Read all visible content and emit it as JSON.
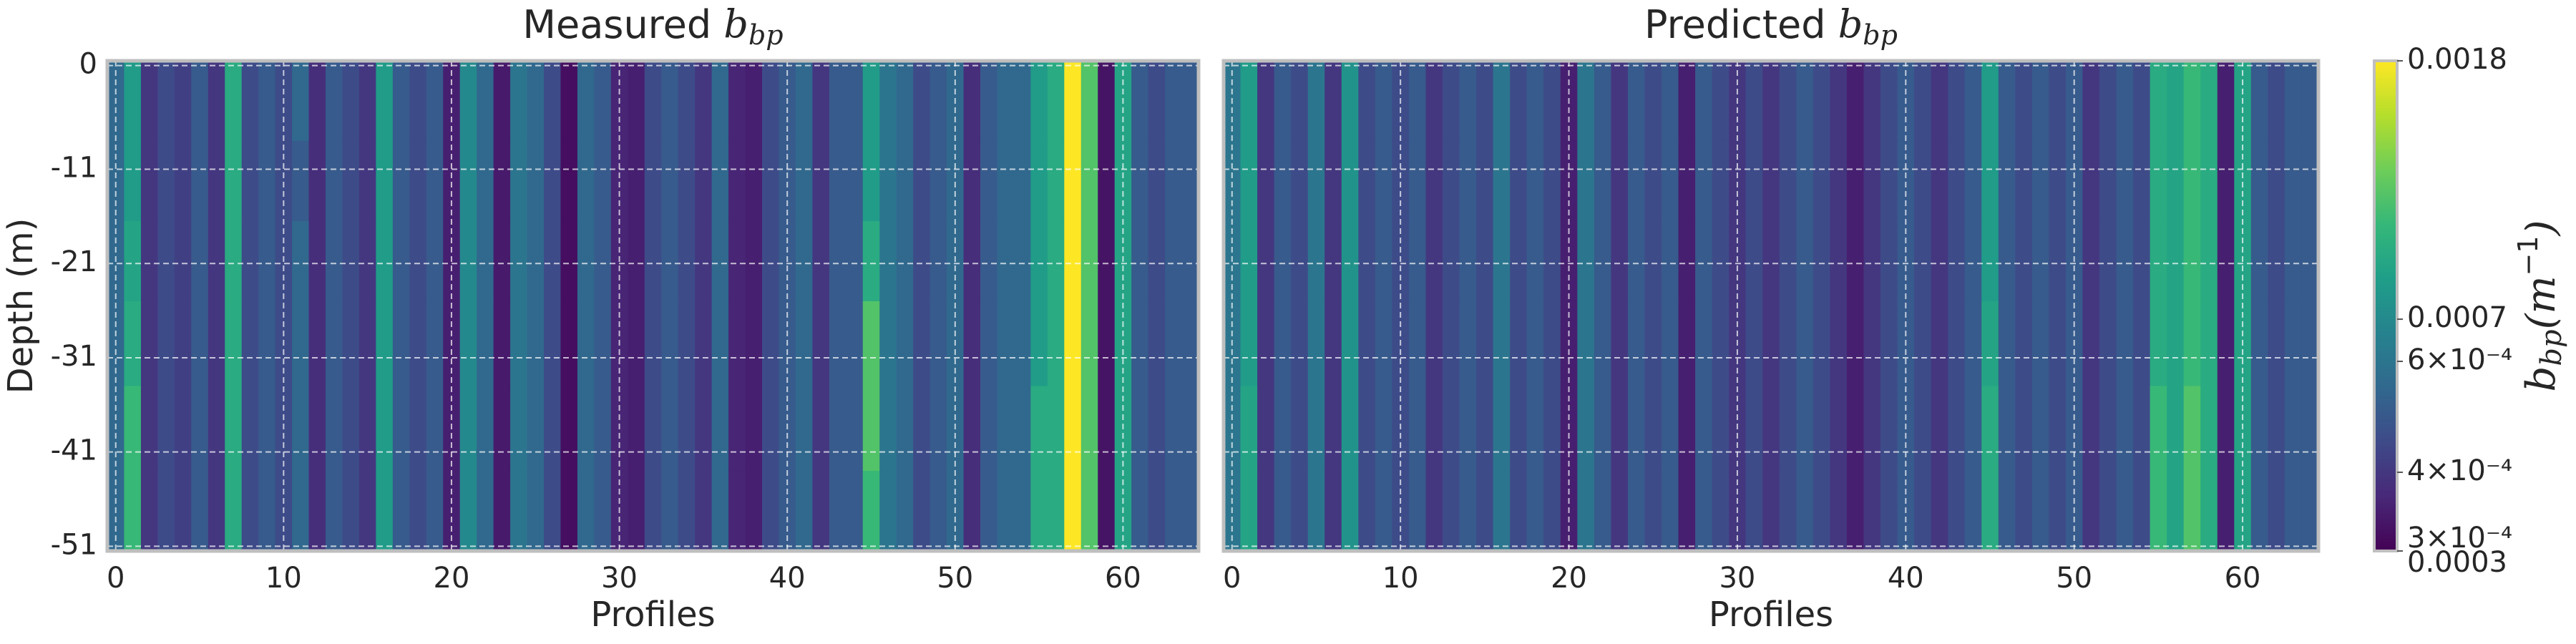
{
  "chart_data": [
    {
      "type": "heatmap",
      "title": "Measured ",
      "title_math": "b",
      "title_math_sub": "bp",
      "x_label": "Profiles",
      "y_label": "Depth (m)",
      "x": [
        0,
        1,
        2,
        3,
        4,
        5,
        6,
        7,
        8,
        9,
        10,
        11,
        12,
        13,
        14,
        15,
        16,
        17,
        18,
        19,
        20,
        21,
        22,
        23,
        24,
        25,
        26,
        27,
        28,
        29,
        30,
        31,
        32,
        33,
        34,
        35,
        36,
        37,
        38,
        39,
        40,
        41,
        42,
        43,
        44,
        45,
        46,
        47,
        48,
        49,
        50,
        51,
        52,
        53,
        54,
        55,
        56,
        57,
        58,
        59,
        60,
        61,
        62,
        63,
        64
      ],
      "xlim": [
        -0.5,
        64.5
      ],
      "xticks": [
        0,
        10,
        20,
        30,
        40,
        50,
        60
      ],
      "ylim": [
        -51.5,
        0.5
      ],
      "yticks": [
        0,
        -11,
        -21,
        -31,
        -41,
        -51
      ],
      "ybins": [
        0.5,
        -8,
        -16.5,
        -25,
        -34,
        -43,
        -51.5
      ],
      "grid": true,
      "z": [
        [
          0.00055,
          0.0008,
          0.0004,
          0.00045,
          0.00042,
          0.0005,
          0.0004,
          0.0009,
          0.00045,
          0.0005,
          0.00045,
          0.00055,
          0.00038,
          0.0005,
          0.00045,
          0.0004,
          0.0008,
          0.0005,
          0.00045,
          0.0005,
          0.00035,
          0.0007,
          0.00055,
          0.00034,
          0.0006,
          0.00055,
          0.00045,
          0.00032,
          0.00055,
          0.0005,
          0.00036,
          0.00035,
          0.00045,
          0.0005,
          0.00045,
          0.0004,
          0.00055,
          0.00036,
          0.00035,
          0.00045,
          0.0005,
          0.00055,
          0.0004,
          0.0005,
          0.0005,
          0.0008,
          0.0006,
          0.00055,
          0.00045,
          0.0005,
          0.00055,
          0.00038,
          0.0005,
          0.00055,
          0.00055,
          0.0008,
          0.0009,
          0.0018,
          0.0011,
          0.00033,
          0.00085,
          0.0005,
          0.00045,
          0.0005,
          0.0005
        ],
        [
          0.00055,
          0.0008,
          0.0004,
          0.00045,
          0.00042,
          0.0005,
          0.0004,
          0.0009,
          0.00045,
          0.0005,
          0.00045,
          0.0005,
          0.00038,
          0.0005,
          0.00045,
          0.0004,
          0.0008,
          0.0005,
          0.00045,
          0.0005,
          0.00035,
          0.0007,
          0.00055,
          0.00034,
          0.0006,
          0.00055,
          0.00045,
          0.00032,
          0.00055,
          0.0005,
          0.00036,
          0.00035,
          0.00045,
          0.0005,
          0.00045,
          0.0004,
          0.00055,
          0.00036,
          0.00035,
          0.00045,
          0.0005,
          0.00055,
          0.0004,
          0.0005,
          0.0005,
          0.0008,
          0.0006,
          0.00055,
          0.00045,
          0.0005,
          0.00055,
          0.00038,
          0.0005,
          0.00055,
          0.00055,
          0.0008,
          0.0009,
          0.0018,
          0.0011,
          0.00033,
          0.00085,
          0.0005,
          0.00045,
          0.0005,
          0.0005
        ],
        [
          0.00055,
          0.00085,
          0.0004,
          0.00045,
          0.00042,
          0.0005,
          0.0004,
          0.0009,
          0.00045,
          0.0005,
          0.00045,
          0.00055,
          0.00038,
          0.0005,
          0.00045,
          0.0004,
          0.0008,
          0.0005,
          0.00045,
          0.0005,
          0.00035,
          0.0007,
          0.00055,
          0.00034,
          0.0006,
          0.00055,
          0.00045,
          0.00032,
          0.00055,
          0.0005,
          0.00036,
          0.00035,
          0.00045,
          0.0005,
          0.00045,
          0.0004,
          0.00055,
          0.00036,
          0.00035,
          0.00045,
          0.0005,
          0.00055,
          0.0004,
          0.0005,
          0.0005,
          0.0009,
          0.0006,
          0.00055,
          0.00045,
          0.0005,
          0.00055,
          0.00038,
          0.0005,
          0.00055,
          0.00055,
          0.0008,
          0.0009,
          0.0018,
          0.0011,
          0.00033,
          0.00085,
          0.0005,
          0.00045,
          0.0005,
          0.0005
        ],
        [
          0.00055,
          0.0009,
          0.0004,
          0.00045,
          0.00042,
          0.0005,
          0.0004,
          0.0009,
          0.00045,
          0.0005,
          0.00045,
          0.00055,
          0.00038,
          0.0005,
          0.00045,
          0.0004,
          0.0008,
          0.0005,
          0.00045,
          0.0005,
          0.00035,
          0.0007,
          0.00055,
          0.00034,
          0.0006,
          0.00055,
          0.00045,
          0.00032,
          0.00055,
          0.0005,
          0.00036,
          0.00035,
          0.00045,
          0.0005,
          0.00045,
          0.0004,
          0.00055,
          0.00036,
          0.00035,
          0.00045,
          0.0005,
          0.00055,
          0.0004,
          0.0005,
          0.0005,
          0.0011,
          0.0006,
          0.00055,
          0.00045,
          0.0005,
          0.00055,
          0.00038,
          0.0005,
          0.00055,
          0.00055,
          0.0008,
          0.0009,
          0.0018,
          0.0011,
          0.00033,
          0.00085,
          0.0005,
          0.00045,
          0.0005,
          0.0005
        ],
        [
          0.00055,
          0.001,
          0.0004,
          0.00045,
          0.00042,
          0.0005,
          0.0004,
          0.0009,
          0.00045,
          0.0005,
          0.00045,
          0.00055,
          0.00038,
          0.0005,
          0.00045,
          0.0004,
          0.0008,
          0.0005,
          0.00045,
          0.0005,
          0.00035,
          0.0007,
          0.00055,
          0.00034,
          0.0006,
          0.00055,
          0.00045,
          0.00032,
          0.00055,
          0.0005,
          0.00036,
          0.00035,
          0.00045,
          0.0005,
          0.00045,
          0.0004,
          0.00055,
          0.00036,
          0.00035,
          0.00045,
          0.0005,
          0.00055,
          0.0004,
          0.0005,
          0.0005,
          0.0011,
          0.0006,
          0.00055,
          0.00045,
          0.0005,
          0.00055,
          0.00038,
          0.0005,
          0.00055,
          0.00055,
          0.0009,
          0.0009,
          0.0018,
          0.0011,
          0.00033,
          0.00085,
          0.0005,
          0.00045,
          0.0005,
          0.0005
        ],
        [
          0.00055,
          0.001,
          0.0004,
          0.00045,
          0.00042,
          0.0005,
          0.0004,
          0.0009,
          0.00045,
          0.0005,
          0.00045,
          0.00055,
          0.00038,
          0.0005,
          0.00045,
          0.0004,
          0.0008,
          0.0005,
          0.00045,
          0.0005,
          0.00035,
          0.0007,
          0.00055,
          0.00034,
          0.0006,
          0.00055,
          0.00045,
          0.00032,
          0.00055,
          0.0005,
          0.00036,
          0.00035,
          0.00045,
          0.0005,
          0.00045,
          0.0004,
          0.00055,
          0.00036,
          0.00035,
          0.00045,
          0.0005,
          0.00055,
          0.0004,
          0.0005,
          0.0005,
          0.001,
          0.0006,
          0.00055,
          0.00045,
          0.0005,
          0.00055,
          0.00038,
          0.0005,
          0.00055,
          0.00055,
          0.0009,
          0.0009,
          0.0018,
          0.0011,
          0.00033,
          0.00085,
          0.0005,
          0.00045,
          0.0005,
          0.0005
        ]
      ]
    },
    {
      "type": "heatmap",
      "title": "Predicted ",
      "title_math": "b",
      "title_math_sub": "bp",
      "x_label": "Profiles",
      "x": [
        0,
        1,
        2,
        3,
        4,
        5,
        6,
        7,
        8,
        9,
        10,
        11,
        12,
        13,
        14,
        15,
        16,
        17,
        18,
        19,
        20,
        21,
        22,
        23,
        24,
        25,
        26,
        27,
        28,
        29,
        30,
        31,
        32,
        33,
        34,
        35,
        36,
        37,
        38,
        39,
        40,
        41,
        42,
        43,
        44,
        45,
        46,
        47,
        48,
        49,
        50,
        51,
        52,
        53,
        54,
        55,
        56,
        57,
        58,
        59,
        60,
        61,
        62,
        63,
        64
      ],
      "xlim": [
        -0.5,
        64.5
      ],
      "xticks": [
        0,
        10,
        20,
        30,
        40,
        50,
        60
      ],
      "ylim": [
        -51.5,
        0.5
      ],
      "yticks": [
        0,
        -11,
        -21,
        -31,
        -41,
        -51
      ],
      "ybins": [
        0.5,
        -8,
        -16.5,
        -25,
        -34,
        -43,
        -51.5
      ],
      "grid": true,
      "z": [
        [
          0.0006,
          0.0008,
          0.0004,
          0.0005,
          0.00045,
          0.0006,
          0.0004,
          0.00075,
          0.00045,
          0.0005,
          0.00045,
          0.0005,
          0.0004,
          0.00045,
          0.0005,
          0.00045,
          0.0006,
          0.00045,
          0.0005,
          0.00045,
          0.00035,
          0.0006,
          0.0005,
          0.0004,
          0.0005,
          0.00045,
          0.0005,
          0.00035,
          0.0005,
          0.00045,
          0.0004,
          0.00045,
          0.0004,
          0.00045,
          0.0005,
          0.00045,
          0.0004,
          0.00035,
          0.0004,
          0.00045,
          0.0005,
          0.00045,
          0.0004,
          0.00045,
          0.0005,
          0.0008,
          0.0005,
          0.00045,
          0.0005,
          0.00045,
          0.0005,
          0.0004,
          0.00045,
          0.0005,
          0.00045,
          0.0009,
          0.00085,
          0.001,
          0.0009,
          0.00035,
          0.00085,
          0.0005,
          0.00045,
          0.0005,
          0.0005
        ],
        [
          0.0006,
          0.0008,
          0.0004,
          0.0005,
          0.00045,
          0.0006,
          0.0004,
          0.00075,
          0.00045,
          0.0005,
          0.00045,
          0.0005,
          0.0004,
          0.00045,
          0.0005,
          0.00045,
          0.0006,
          0.00045,
          0.0005,
          0.00045,
          0.00035,
          0.0006,
          0.0005,
          0.0004,
          0.0005,
          0.00045,
          0.0005,
          0.00035,
          0.0005,
          0.00045,
          0.0004,
          0.00045,
          0.0004,
          0.00045,
          0.0005,
          0.00045,
          0.0004,
          0.00035,
          0.0004,
          0.00045,
          0.0005,
          0.00045,
          0.0004,
          0.00045,
          0.0005,
          0.0008,
          0.0005,
          0.00045,
          0.0005,
          0.00045,
          0.0005,
          0.0004,
          0.00045,
          0.0005,
          0.00045,
          0.0009,
          0.00085,
          0.001,
          0.0009,
          0.00035,
          0.00085,
          0.0005,
          0.00045,
          0.0005,
          0.0005
        ],
        [
          0.0006,
          0.0008,
          0.0004,
          0.0005,
          0.00045,
          0.0006,
          0.0004,
          0.00075,
          0.00045,
          0.0005,
          0.00045,
          0.0005,
          0.0004,
          0.00045,
          0.0005,
          0.00045,
          0.0006,
          0.00045,
          0.0005,
          0.00045,
          0.00035,
          0.0006,
          0.0005,
          0.0004,
          0.0005,
          0.00045,
          0.0005,
          0.00035,
          0.0005,
          0.00045,
          0.0004,
          0.00045,
          0.0004,
          0.00045,
          0.0005,
          0.00045,
          0.0004,
          0.00035,
          0.0004,
          0.00045,
          0.0005,
          0.00045,
          0.0004,
          0.00045,
          0.0005,
          0.0008,
          0.0005,
          0.00045,
          0.0005,
          0.00045,
          0.0005,
          0.0004,
          0.00045,
          0.0005,
          0.00045,
          0.0009,
          0.00085,
          0.001,
          0.0009,
          0.00035,
          0.00085,
          0.0005,
          0.00045,
          0.0005,
          0.0005
        ],
        [
          0.0006,
          0.0008,
          0.0004,
          0.0005,
          0.00045,
          0.0006,
          0.0004,
          0.00075,
          0.00045,
          0.0005,
          0.00045,
          0.0005,
          0.0004,
          0.00045,
          0.0005,
          0.00045,
          0.0006,
          0.00045,
          0.0005,
          0.00045,
          0.00035,
          0.0006,
          0.0005,
          0.0004,
          0.0005,
          0.00045,
          0.0005,
          0.00035,
          0.0005,
          0.00045,
          0.0004,
          0.00045,
          0.0004,
          0.00045,
          0.0005,
          0.00045,
          0.0004,
          0.00035,
          0.0004,
          0.00045,
          0.0005,
          0.00045,
          0.0004,
          0.00045,
          0.0005,
          0.00085,
          0.0005,
          0.00045,
          0.0005,
          0.00045,
          0.0005,
          0.0004,
          0.00045,
          0.0005,
          0.00045,
          0.0009,
          0.00085,
          0.001,
          0.0009,
          0.00035,
          0.00085,
          0.0005,
          0.00045,
          0.0005,
          0.0005
        ],
        [
          0.0006,
          0.00085,
          0.0004,
          0.0005,
          0.00045,
          0.0006,
          0.0004,
          0.00075,
          0.00045,
          0.0005,
          0.00045,
          0.0005,
          0.0004,
          0.00045,
          0.0005,
          0.00045,
          0.0006,
          0.00045,
          0.0005,
          0.00045,
          0.00035,
          0.0006,
          0.0005,
          0.0004,
          0.0005,
          0.00045,
          0.0005,
          0.00035,
          0.0005,
          0.00045,
          0.0004,
          0.00045,
          0.0004,
          0.00045,
          0.0005,
          0.00045,
          0.0004,
          0.00035,
          0.0004,
          0.00045,
          0.0005,
          0.00045,
          0.0004,
          0.00045,
          0.0005,
          0.0009,
          0.0005,
          0.00045,
          0.0005,
          0.00045,
          0.0005,
          0.0004,
          0.00045,
          0.0005,
          0.00045,
          0.001,
          0.00085,
          0.0011,
          0.0009,
          0.00035,
          0.00085,
          0.0005,
          0.00045,
          0.0005,
          0.0005
        ],
        [
          0.0006,
          0.00085,
          0.0004,
          0.0005,
          0.00045,
          0.0006,
          0.0004,
          0.00075,
          0.00045,
          0.0005,
          0.00045,
          0.0005,
          0.0004,
          0.00045,
          0.0005,
          0.00045,
          0.0006,
          0.00045,
          0.0005,
          0.00045,
          0.00035,
          0.0006,
          0.0005,
          0.0004,
          0.0005,
          0.00045,
          0.0005,
          0.00035,
          0.0005,
          0.00045,
          0.0004,
          0.00045,
          0.0004,
          0.00045,
          0.0005,
          0.00045,
          0.0004,
          0.00035,
          0.0004,
          0.00045,
          0.0005,
          0.00045,
          0.0004,
          0.00045,
          0.0005,
          0.0009,
          0.0005,
          0.00045,
          0.0005,
          0.00045,
          0.0005,
          0.0004,
          0.00045,
          0.0005,
          0.00045,
          0.001,
          0.00085,
          0.0011,
          0.0009,
          0.00035,
          0.00085,
          0.0005,
          0.00045,
          0.0005,
          0.0005
        ]
      ]
    },
    {
      "type": "colorbar",
      "label": [
        "b",
        "bp",
        "(m",
        "−1",
        ")"
      ],
      "colormap": "viridis",
      "log": true,
      "lim": [
        0.0003,
        0.0018
      ],
      "ticks": [
        0.0018,
        0.0007,
        {
          "value": 0.0006,
          "label": "6×10⁻⁴"
        },
        {
          "value": 0.0004,
          "label": "4×10⁻⁴"
        },
        {
          "value": 0.0003,
          "label": "3×10⁻⁴"
        },
        0.0003
      ]
    }
  ]
}
